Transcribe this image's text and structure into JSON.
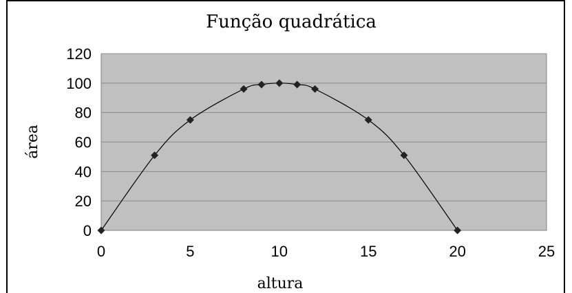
{
  "chart_data": {
    "type": "scatter",
    "title": "Função quadrática",
    "xlabel": "altura",
    "ylabel": "área",
    "xlim": [
      0,
      25
    ],
    "ylim": [
      0,
      120
    ],
    "xticks": [
      0,
      5,
      10,
      15,
      20,
      25
    ],
    "yticks": [
      0,
      20,
      40,
      60,
      80,
      100,
      120
    ],
    "grid": true,
    "plot_background": "#c0c0c0",
    "line_color": "#000000",
    "marker": "diamond",
    "smooth_line": true,
    "series": [
      {
        "x": [
          0,
          3,
          5,
          8,
          9,
          10,
          11,
          12,
          15,
          17,
          20
        ],
        "y": [
          0,
          51,
          75,
          96,
          99,
          100,
          99,
          96,
          75,
          51,
          0
        ]
      }
    ]
  }
}
